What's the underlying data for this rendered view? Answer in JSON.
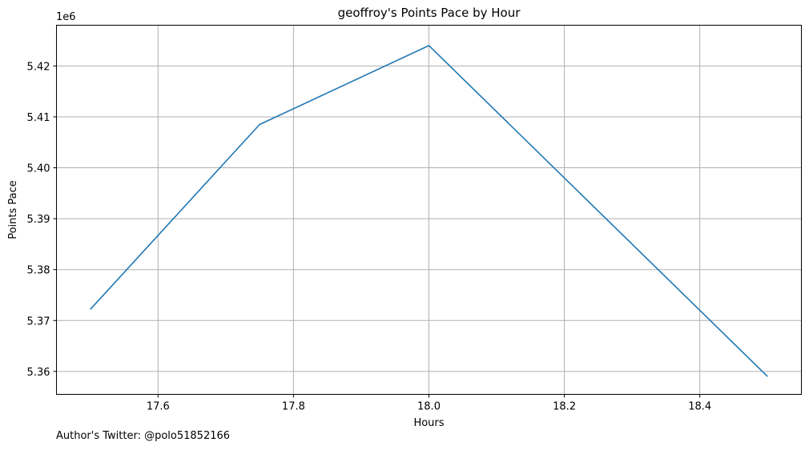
{
  "chart_data": {
    "type": "line",
    "title": "geoffroy's Points Pace by Hour",
    "xlabel": "Hours",
    "ylabel": "Points Pace",
    "y_offset_label": "1e6",
    "xlim": [
      17.45,
      18.55
    ],
    "ylim": [
      5.3555,
      5.428
    ],
    "x_ticks": [
      17.6,
      17.8,
      18.0,
      18.2,
      18.4
    ],
    "x_tick_labels": [
      "17.6",
      "17.8",
      "18.0",
      "18.2",
      "18.4"
    ],
    "y_ticks": [
      5.36,
      5.37,
      5.38,
      5.39,
      5.4,
      5.41,
      5.42
    ],
    "y_tick_labels": [
      "5.36",
      "5.37",
      "5.38",
      "5.39",
      "5.40",
      "5.41",
      "5.42"
    ],
    "grid": true,
    "series": [
      {
        "color": "#1f77b4",
        "x": [
          17.5,
          17.75,
          18.0,
          18.5
        ],
        "y": [
          5.3722,
          5.4085,
          5.424,
          5.359
        ]
      }
    ]
  },
  "footer": {
    "author": "Author's Twitter: @polo51852166"
  }
}
